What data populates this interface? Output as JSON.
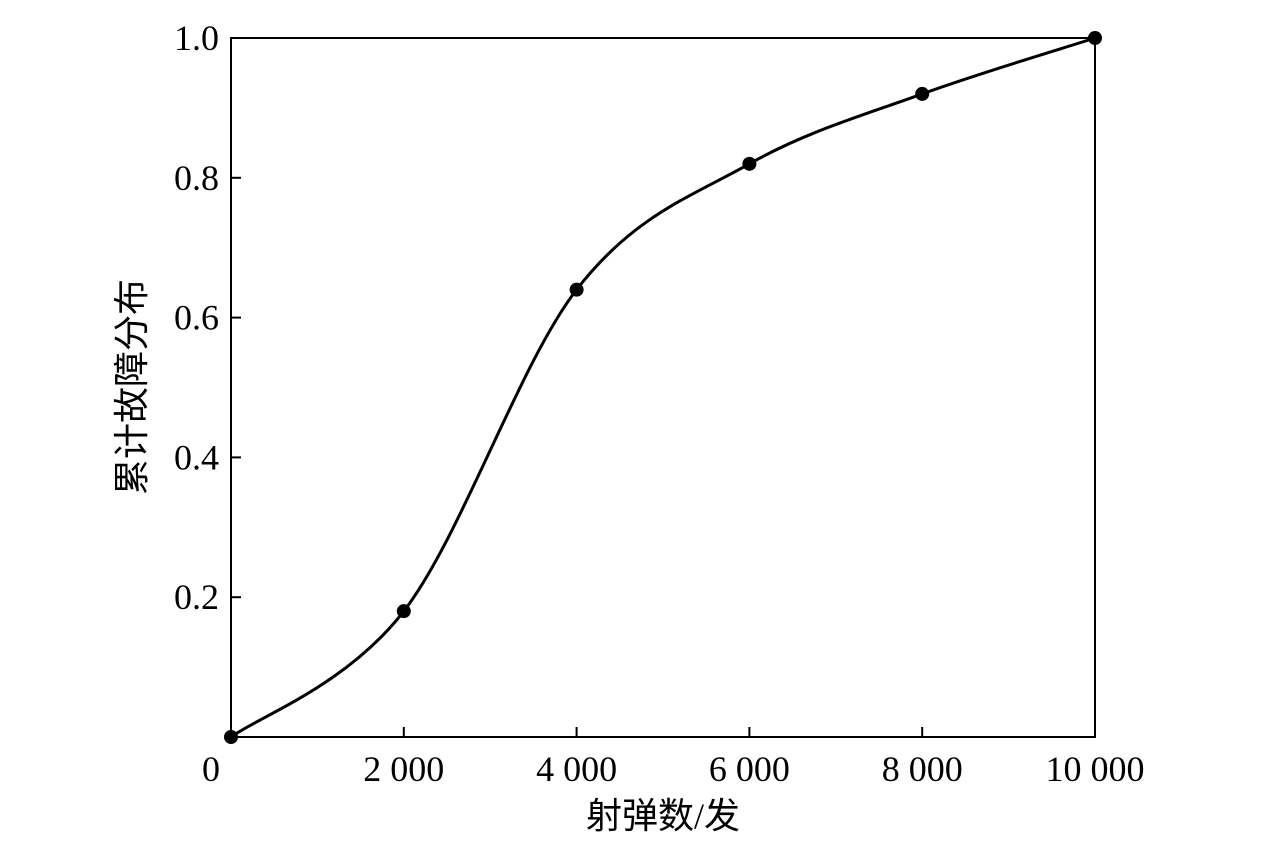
{
  "chart_data": {
    "type": "line",
    "title": "",
    "xlabel": "射弹数/发",
    "ylabel": "累计故障分布",
    "xlim": [
      0,
      10000
    ],
    "ylim": [
      0,
      1.0
    ],
    "x_ticks": [
      0,
      2000,
      4000,
      6000,
      8000,
      10000
    ],
    "x_tick_labels": [
      "0",
      "2 000",
      "4 000",
      "6 000",
      "8 000",
      "10 000"
    ],
    "y_ticks": [
      0.2,
      0.4,
      0.6,
      0.8,
      1.0
    ],
    "y_tick_labels": [
      "0.2",
      "0.4",
      "0.6",
      "0.8",
      "1.0"
    ],
    "grid": false,
    "series": [
      {
        "x": [
          0,
          2000,
          4000,
          6000,
          8000,
          10000
        ],
        "y": [
          0.0,
          0.18,
          0.64,
          0.82,
          0.92,
          1.0
        ],
        "marker": "circle",
        "smooth": true
      }
    ],
    "colors": {
      "line": "#000000",
      "marker": "#000000"
    }
  }
}
